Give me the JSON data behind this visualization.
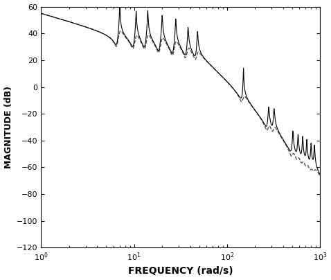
{
  "xlabel": "FREQUENCY (rad/s)",
  "ylabel": "MAGNITUDE (dB)",
  "xlim": [
    1.0,
    1000.0
  ],
  "ylim": [
    -120,
    60
  ],
  "yticks": [
    60,
    40,
    20,
    0,
    -20,
    -40,
    -60,
    -80,
    -100,
    -120
  ],
  "solid_color": "#000000",
  "dashed_color": "#555555",
  "background_color": "#ffffff",
  "figsize": [
    4.78,
    4.04
  ],
  "dpi": 100,
  "gain_dB": 55.0,
  "integrator_order": 1,
  "poles_solid": [
    [
      7.0,
      0.005
    ],
    [
      10.5,
      0.006
    ],
    [
      14.0,
      0.006
    ],
    [
      20.0,
      0.007
    ],
    [
      28.0,
      0.007
    ],
    [
      38.0,
      0.008
    ],
    [
      48.0,
      0.008
    ],
    [
      150.0,
      0.004
    ],
    [
      280.0,
      0.01
    ],
    [
      320.0,
      0.01
    ],
    [
      510.0,
      0.008
    ],
    [
      580.0,
      0.008
    ],
    [
      650.0,
      0.007
    ],
    [
      720.0,
      0.007
    ],
    [
      800.0,
      0.007
    ],
    [
      870.0,
      0.007
    ]
  ],
  "zeros_solid": [
    [
      6.5,
      0.04
    ],
    [
      9.8,
      0.04
    ],
    [
      13.0,
      0.04
    ],
    [
      18.5,
      0.04
    ],
    [
      26.0,
      0.04
    ],
    [
      36.0,
      0.04
    ],
    [
      46.0,
      0.04
    ],
    [
      145.0,
      0.04
    ],
    [
      270.0,
      0.04
    ],
    [
      310.0,
      0.04
    ],
    [
      495.0,
      0.04
    ],
    [
      565.0,
      0.04
    ],
    [
      635.0,
      0.04
    ],
    [
      705.0,
      0.04
    ],
    [
      785.0,
      0.04
    ],
    [
      855.0,
      0.04
    ]
  ],
  "poles_dashed": [
    [
      7.0,
      0.05
    ],
    [
      10.5,
      0.05
    ],
    [
      14.0,
      0.05
    ],
    [
      20.0,
      0.05
    ],
    [
      28.0,
      0.05
    ],
    [
      38.0,
      0.05
    ],
    [
      48.0,
      0.05
    ],
    [
      150.0,
      0.05
    ],
    [
      280.0,
      0.05
    ],
    [
      320.0,
      0.05
    ],
    [
      510.0,
      0.05
    ],
    [
      580.0,
      0.05
    ],
    [
      650.0,
      0.05
    ],
    [
      720.0,
      0.05
    ],
    [
      800.0,
      0.05
    ],
    [
      870.0,
      0.05
    ]
  ],
  "zeros_dashed": [
    [
      6.5,
      0.04
    ],
    [
      9.8,
      0.04
    ],
    [
      13.0,
      0.04
    ],
    [
      18.5,
      0.04
    ],
    [
      26.0,
      0.04
    ],
    [
      36.0,
      0.04
    ],
    [
      46.0,
      0.04
    ],
    [
      145.0,
      0.04
    ],
    [
      270.0,
      0.04
    ],
    [
      310.0,
      0.04
    ],
    [
      495.0,
      0.04
    ],
    [
      565.0,
      0.04
    ],
    [
      635.0,
      0.04
    ],
    [
      705.0,
      0.04
    ],
    [
      785.0,
      0.04
    ],
    [
      855.0,
      0.04
    ]
  ],
  "extra_rolloff_wn": 55.0,
  "extra_rolloff_order": 3
}
